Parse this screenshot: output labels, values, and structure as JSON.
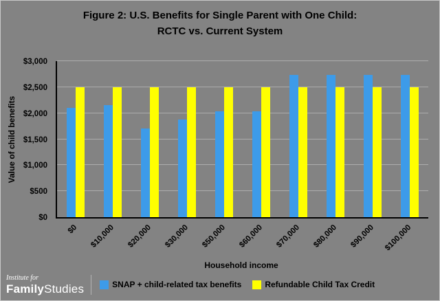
{
  "title": {
    "line1": "Figure 2: U.S. Benefits for Single Parent with One Child:",
    "line2": "RCTC vs. Current System"
  },
  "chart_data": {
    "type": "bar",
    "categories": [
      "$0",
      "$10,000",
      "$20,000",
      "$30,000",
      "$50,000",
      "$60,000",
      "$70,000",
      "$80,000",
      "$90,000",
      "$100,000"
    ],
    "series": [
      {
        "name": "SNAP + child-related tax benefits",
        "color": "#3D9BE9",
        "values": [
          2100,
          2160,
          1700,
          1880,
          2040,
          2040,
          2730,
          2730,
          2730,
          2740
        ]
      },
      {
        "name": "Refundable Child Tax Credit",
        "color": "#FFFF00",
        "values": [
          2500,
          2500,
          2500,
          2500,
          2500,
          2500,
          2500,
          2500,
          2500,
          2500
        ]
      }
    ],
    "xlabel": "Household income",
    "ylabel": "Value of child benefits",
    "ylim": [
      0,
      3000
    ],
    "ytick_step": 500,
    "ytick_labels": [
      "$0",
      "$500",
      "$1,000",
      "$1,500",
      "$2,000",
      "$2,500",
      "$3,000"
    ],
    "grid": true,
    "legend_position": "bottom"
  },
  "footer": {
    "logo_top": "Institute for",
    "logo_bold": "Family",
    "logo_light": "Studies"
  },
  "colors": {
    "background": "#838383",
    "gridline": "#adadad",
    "axis": "#000000",
    "title_text": "#000000",
    "logo_text": "#ffffff"
  }
}
